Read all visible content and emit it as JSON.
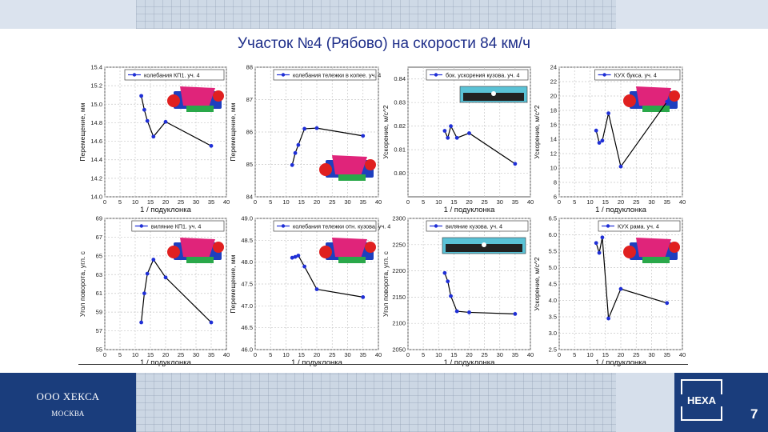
{
  "title": "Участок №4 (Рябово) на скорости 84 км/ч",
  "footer": {
    "company": "ООО ХЕКСА",
    "city": "МОСКВА",
    "logo_text": "HEXA",
    "page_number": "7"
  },
  "colors": {
    "series": "#1f2fd6",
    "line": "#000000",
    "title": "#1f2f8a",
    "company_band": "#1a3d7c"
  },
  "chart_data": [
    {
      "type": "line",
      "legend": "колебания КП1. уч. 4",
      "ylabel": "Перемещение, мм",
      "xlabel": "1 / подуклонка",
      "xlim": [
        0,
        40
      ],
      "xticks": [
        0,
        5,
        10,
        15,
        20,
        25,
        30,
        35,
        40
      ],
      "ylim": [
        14.0,
        15.4
      ],
      "yticks": [
        "14.0",
        "14.2",
        "14.4",
        "14.6",
        "14.8",
        "15.0",
        "15.2",
        "15.4"
      ],
      "x": [
        12,
        13,
        14,
        16,
        20,
        35
      ],
      "y": [
        15.09,
        14.94,
        14.82,
        14.65,
        14.81,
        14.55
      ],
      "icon": "bogie-icon"
    },
    {
      "type": "line",
      "legend": "колебания тележки в копее. уч. 4",
      "ylabel": "Перемещение, мм",
      "xlabel": "",
      "xlim": [
        0,
        40
      ],
      "xticks": [
        0,
        5,
        10,
        15,
        20,
        25,
        30,
        35,
        40
      ],
      "ylim": [
        84,
        88
      ],
      "yticks": [
        "84",
        "85",
        "86",
        "87",
        "88"
      ],
      "x": [
        12,
        13,
        14,
        16,
        20,
        35
      ],
      "y": [
        84.98,
        85.35,
        85.6,
        86.1,
        86.12,
        85.88
      ],
      "icon": "bogie-icon"
    },
    {
      "type": "line",
      "legend": "бок. ускорения кузова. уч. 4",
      "ylabel": "Ускорение, м/с^2",
      "xlabel": "1 / подуклонка",
      "xlim": [
        0,
        40
      ],
      "xticks": [
        0,
        5,
        10,
        15,
        20,
        25,
        30,
        35,
        40
      ],
      "ylim": [
        0.79,
        0.845
      ],
      "yticks": [
        "0.80",
        "0.81",
        "0.82",
        "0.83",
        "0.84"
      ],
      "x": [
        12,
        13,
        14,
        16,
        20,
        35
      ],
      "y": [
        0.818,
        0.815,
        0.82,
        0.815,
        0.817,
        0.804
      ],
      "icon": "carbody-icon"
    },
    {
      "type": "line",
      "legend": "КУХ букса. уч. 4",
      "ylabel": "Ускорение, м/с^2",
      "xlabel": "1 / подуклонка",
      "xlim": [
        0,
        40
      ],
      "xticks": [
        0,
        5,
        10,
        15,
        20,
        25,
        30,
        35,
        40
      ],
      "ylim": [
        6,
        24
      ],
      "yticks": [
        "6",
        "8",
        "10",
        "12",
        "14",
        "16",
        "18",
        "20",
        "22",
        "24"
      ],
      "x": [
        12,
        13,
        14,
        16,
        20,
        35
      ],
      "y": [
        15.2,
        13.5,
        13.8,
        17.6,
        10.2,
        19.2
      ],
      "icon": "bogie-icon"
    },
    {
      "type": "line",
      "legend": "виляние КП1. уч. 4",
      "ylabel": "Угол поворота, угл. с",
      "xlabel": "1 / подуклонка",
      "xlim": [
        0,
        40
      ],
      "xticks": [
        0,
        5,
        10,
        15,
        20,
        25,
        30,
        35,
        40
      ],
      "ylim": [
        55,
        69
      ],
      "yticks": [
        "55",
        "57",
        "59",
        "61",
        "63",
        "65",
        "67",
        "69"
      ],
      "x": [
        12,
        13,
        14,
        16,
        20,
        35
      ],
      "y": [
        57.9,
        61.0,
        63.1,
        64.6,
        62.7,
        57.9
      ],
      "icon": "bogie-icon"
    },
    {
      "type": "line",
      "legend": "колебания тележки отн. кузова. уч. 4",
      "ylabel": "Перемещение, мм",
      "xlabel": "1 / подуклонка",
      "xlim": [
        0,
        40
      ],
      "xticks": [
        0,
        5,
        10,
        15,
        20,
        25,
        30,
        35,
        40
      ],
      "ylim": [
        46.0,
        49.0
      ],
      "yticks": [
        "46.0",
        "46.5",
        "47.0",
        "47.5",
        "48.0",
        "48.5",
        "49.0"
      ],
      "x": [
        12,
        13,
        14,
        16,
        20,
        35
      ],
      "y": [
        48.1,
        48.12,
        48.15,
        47.9,
        47.38,
        47.2
      ],
      "icon": "bogie-icon"
    },
    {
      "type": "line",
      "legend": "виляние кузова. уч. 4",
      "ylabel": "Угол поворота, угл. с",
      "xlabel": "1 / подуклонка",
      "xlim": [
        0,
        40
      ],
      "xticks": [
        0,
        5,
        10,
        15,
        20,
        25,
        30,
        35,
        40
      ],
      "ylim": [
        2050,
        2300
      ],
      "yticks": [
        "2050",
        "2100",
        "2150",
        "2200",
        "2250",
        "2300"
      ],
      "x": [
        12,
        13,
        14,
        16,
        20,
        35
      ],
      "y": [
        2196,
        2180,
        2152,
        2123,
        2121,
        2118
      ],
      "icon": "carbody-icon"
    },
    {
      "type": "line",
      "legend": "КУХ рама. уч. 4",
      "ylabel": "Ускорение, м/с^2",
      "xlabel": "1 / подуклонка",
      "xlim": [
        0,
        40
      ],
      "xticks": [
        0,
        5,
        10,
        15,
        20,
        25,
        30,
        35,
        40
      ],
      "ylim": [
        2.5,
        6.5
      ],
      "yticks": [
        "2.5",
        "3.0",
        "3.5",
        "4.0",
        "4.5",
        "5.0",
        "5.5",
        "6.0",
        "6.5"
      ],
      "x": [
        12,
        13,
        14,
        16,
        20,
        35
      ],
      "y": [
        5.75,
        5.45,
        5.92,
        3.45,
        4.35,
        3.92
      ],
      "icon": "bogie-icon"
    }
  ]
}
